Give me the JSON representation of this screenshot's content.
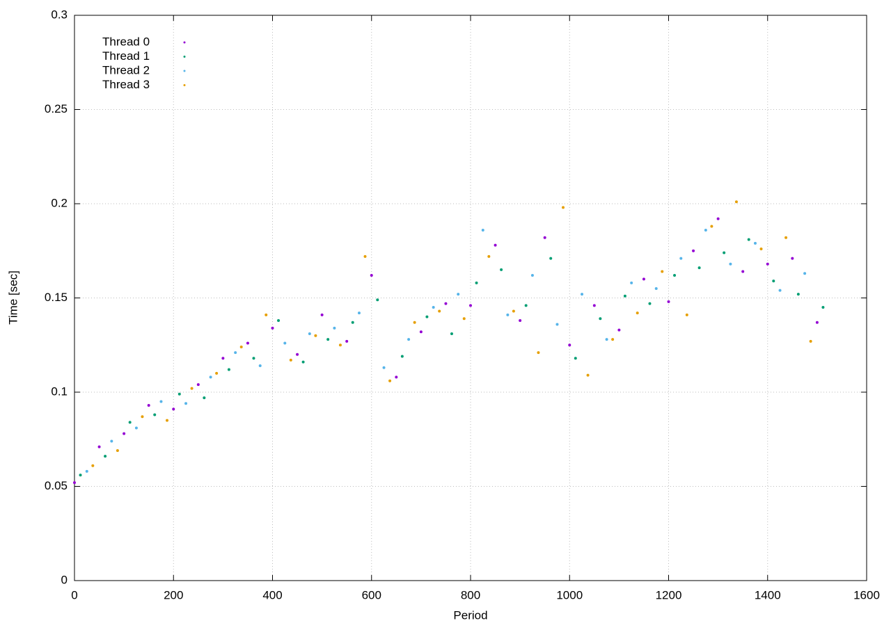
{
  "chart_data": {
    "type": "scatter",
    "xlabel": "Period",
    "ylabel": "Time [sec]",
    "xlim": [
      0,
      1600
    ],
    "xticks": [
      0,
      200,
      400,
      600,
      800,
      1000,
      1200,
      1400,
      1600
    ],
    "ylim": [
      0,
      0.3
    ],
    "yticks": [
      0,
      0.05,
      0.1,
      0.15,
      0.2,
      0.25,
      0.3
    ],
    "grid": true,
    "legend": "top-left",
    "series": [
      {
        "name": "Thread 0",
        "color": "#9400d3",
        "x": [
          0,
          50,
          100,
          150,
          200,
          250,
          300,
          350,
          400,
          450,
          500,
          550,
          600,
          650,
          700,
          750,
          800,
          850,
          900,
          950,
          1000,
          1050,
          1100,
          1150,
          1200,
          1250,
          1300,
          1350,
          1400,
          1450,
          1500
        ],
        "values": [
          0.052,
          0.071,
          0.078,
          0.093,
          0.091,
          0.104,
          0.118,
          0.126,
          0.134,
          0.12,
          0.141,
          0.127,
          0.162,
          0.108,
          0.132,
          0.147,
          0.146,
          0.178,
          0.138,
          0.182,
          0.125,
          0.146,
          0.133,
          0.16,
          0.148,
          0.175,
          0.192,
          0.164,
          0.168,
          0.171,
          0.137
        ]
      },
      {
        "name": "Thread 1",
        "color": "#009e73",
        "x": [
          12,
          62,
          112,
          162,
          212,
          262,
          312,
          362,
          412,
          462,
          512,
          562,
          612,
          662,
          712,
          762,
          812,
          862,
          912,
          962,
          1012,
          1062,
          1112,
          1162,
          1212,
          1262,
          1312,
          1362,
          1412,
          1462,
          1512
        ],
        "values": [
          0.056,
          0.066,
          0.084,
          0.088,
          0.099,
          0.097,
          0.112,
          0.118,
          0.138,
          0.116,
          0.128,
          0.137,
          0.149,
          0.119,
          0.14,
          0.131,
          0.158,
          0.165,
          0.146,
          0.171,
          0.118,
          0.139,
          0.151,
          0.147,
          0.162,
          0.166,
          0.174,
          0.181,
          0.159,
          0.152,
          0.145
        ]
      },
      {
        "name": "Thread 2",
        "color": "#56b4e9",
        "x": [
          25,
          75,
          125,
          175,
          225,
          275,
          325,
          375,
          425,
          475,
          525,
          575,
          625,
          675,
          725,
          775,
          825,
          875,
          925,
          975,
          1025,
          1075,
          1125,
          1175,
          1225,
          1275,
          1325,
          1375,
          1425,
          1475
        ],
        "values": [
          0.058,
          0.074,
          0.081,
          0.095,
          0.094,
          0.108,
          0.121,
          0.114,
          0.126,
          0.131,
          0.134,
          0.142,
          0.113,
          0.128,
          0.145,
          0.152,
          0.186,
          0.141,
          0.162,
          0.136,
          0.152,
          0.128,
          0.158,
          0.155,
          0.171,
          0.186,
          0.168,
          0.179,
          0.154,
          0.163
        ]
      },
      {
        "name": "Thread 3",
        "color": "#e69f00",
        "x": [
          37,
          87,
          137,
          187,
          237,
          287,
          337,
          387,
          437,
          487,
          537,
          587,
          637,
          687,
          737,
          787,
          837,
          887,
          937,
          987,
          1037,
          1087,
          1137,
          1187,
          1237,
          1287,
          1337,
          1387,
          1437,
          1487
        ],
        "values": [
          0.061,
          0.069,
          0.087,
          0.085,
          0.102,
          0.11,
          0.124,
          0.141,
          0.117,
          0.13,
          0.125,
          0.172,
          0.106,
          0.137,
          0.143,
          0.139,
          0.172,
          0.143,
          0.121,
          0.198,
          0.109,
          0.128,
          0.142,
          0.164,
          0.141,
          0.188,
          0.201,
          0.176,
          0.182,
          0.127
        ]
      }
    ]
  }
}
